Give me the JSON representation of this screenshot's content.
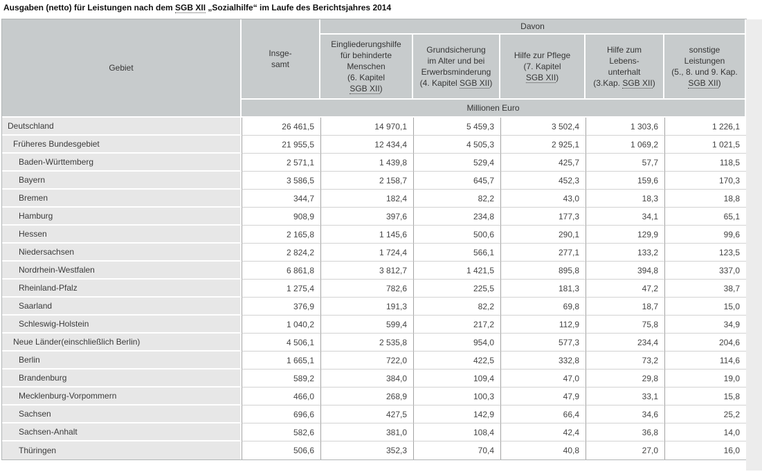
{
  "abbr_term": "SGB XII",
  "title": "Ausgaben (netto) für Leistungen nach dem SGB XII „Sozialhilfe“ im Laufe des Berichtsjahres 2014",
  "colors": {
    "header_bg": "#c7cbcc",
    "region_cell_bg": "#e7e7e7",
    "value_cell_bg": "#ffffff",
    "gutter_bg": "#ececec"
  },
  "table": {
    "gebiet_label": "Gebiet",
    "insgesamt_label": "Insge-\nsamt",
    "davon_label": "Davon",
    "unit_label": "Millionen Euro",
    "davon_columns": [
      "Eingliederungshilfe\nfür behinderte\nMenschen\n(6. Kapitel\nSGB XII)",
      "Grundsicherung\nim Alter und bei\nErwerbsminderung\n(4. Kapitel SGB XII)",
      "Hilfe zur Pflege\n(7. Kapitel\nSGB XII)",
      "Hilfe zum\nLebens-\nunterhalt\n(3.Kap. SGB XII)",
      "sonstige\nLeistungen\n(5., 8. und 9. Kap.\nSGB XII)"
    ],
    "rows": [
      {
        "label": "Deutschland",
        "indent": 0,
        "values": [
          "26 461,5",
          "14 970,1",
          "5 459,3",
          "3 502,4",
          "1 303,6",
          "1 226,1"
        ]
      },
      {
        "label": "Früheres Bundesgebiet",
        "indent": 1,
        "values": [
          "21 955,5",
          "12 434,4",
          "4 505,3",
          "2 925,1",
          "1 069,2",
          "1 021,5"
        ]
      },
      {
        "label": "Baden-Württemberg",
        "indent": 2,
        "values": [
          "2 571,1",
          "1 439,8",
          "529,4",
          "425,7",
          "57,7",
          "118,5"
        ]
      },
      {
        "label": "Bayern",
        "indent": 2,
        "values": [
          "3 586,5",
          "2 158,7",
          "645,7",
          "452,3",
          "159,6",
          "170,3"
        ]
      },
      {
        "label": "Bremen",
        "indent": 2,
        "values": [
          "344,7",
          "182,4",
          "82,2",
          "43,0",
          "18,3",
          "18,8"
        ]
      },
      {
        "label": "Hamburg",
        "indent": 2,
        "values": [
          "908,9",
          "397,6",
          "234,8",
          "177,3",
          "34,1",
          "65,1"
        ]
      },
      {
        "label": "Hessen",
        "indent": 2,
        "values": [
          "2 165,8",
          "1 145,6",
          "500,6",
          "290,1",
          "129,9",
          "99,6"
        ]
      },
      {
        "label": "Niedersachsen",
        "indent": 2,
        "values": [
          "2 824,2",
          "1 724,4",
          "566,1",
          "277,1",
          "133,2",
          "123,5"
        ]
      },
      {
        "label": "Nordrhein-Westfalen",
        "indent": 2,
        "values": [
          "6 861,8",
          "3 812,7",
          "1 421,5",
          "895,8",
          "394,8",
          "337,0"
        ]
      },
      {
        "label": "Rheinland-Pfalz",
        "indent": 2,
        "values": [
          "1 275,4",
          "782,6",
          "225,5",
          "181,3",
          "47,2",
          "38,7"
        ]
      },
      {
        "label": "Saarland",
        "indent": 2,
        "values": [
          "376,9",
          "191,3",
          "82,2",
          "69,8",
          "18,7",
          "15,0"
        ]
      },
      {
        "label": "Schleswig-Holstein",
        "indent": 2,
        "values": [
          "1 040,2",
          "599,4",
          "217,2",
          "112,9",
          "75,8",
          "34,9"
        ]
      },
      {
        "label": "Neue Länder(einschließlich Berlin)",
        "indent": 1,
        "values": [
          "4 506,1",
          "2 535,8",
          "954,0",
          "577,3",
          "234,4",
          "204,6"
        ]
      },
      {
        "label": "Berlin",
        "indent": 2,
        "values": [
          "1 665,1",
          "722,0",
          "422,5",
          "332,8",
          "73,2",
          "114,6"
        ]
      },
      {
        "label": "Brandenburg",
        "indent": 2,
        "values": [
          "589,2",
          "384,0",
          "109,4",
          "47,0",
          "29,8",
          "19,0"
        ]
      },
      {
        "label": "Mecklenburg-Vorpommern",
        "indent": 2,
        "values": [
          "466,0",
          "268,9",
          "100,3",
          "47,9",
          "33,1",
          "15,8"
        ]
      },
      {
        "label": "Sachsen",
        "indent": 2,
        "values": [
          "696,6",
          "427,5",
          "142,9",
          "66,4",
          "34,6",
          "25,2"
        ]
      },
      {
        "label": "Sachsen-Anhalt",
        "indent": 2,
        "values": [
          "582,6",
          "381,0",
          "108,4",
          "42,4",
          "36,8",
          "14,0"
        ]
      },
      {
        "label": "Thüringen",
        "indent": 2,
        "values": [
          "506,6",
          "352,3",
          "70,4",
          "40,8",
          "27,0",
          "16,0"
        ]
      }
    ]
  }
}
